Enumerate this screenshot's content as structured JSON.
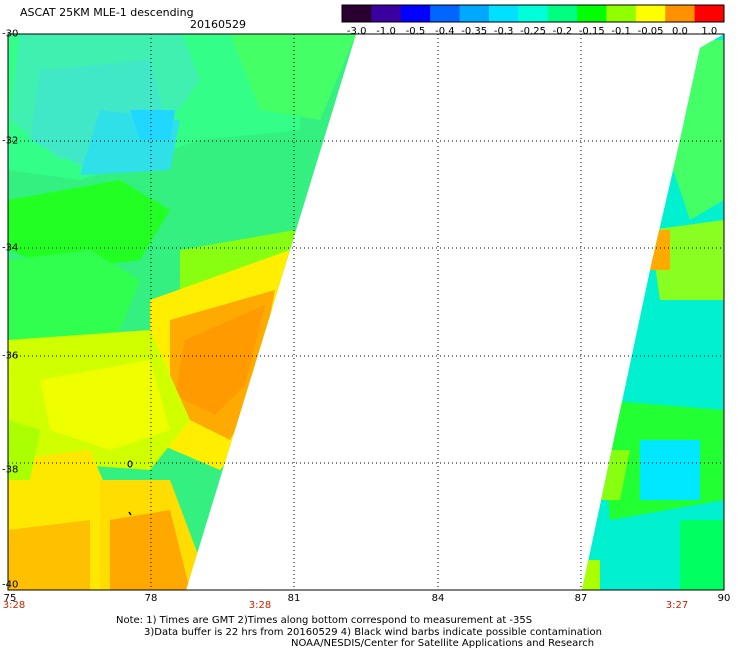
{
  "header": {
    "title": "ASCAT 25KM MLE-1 descending",
    "date": "20160529"
  },
  "colorbar": {
    "labels": [
      "-3.0",
      "-1.0",
      "-0.5",
      "-0.4",
      "-0.35",
      "-0.3",
      "-0.25",
      "-0.2",
      "-0.15",
      "-0.1",
      "-0.05",
      "0.0",
      "1.0"
    ],
    "colors": [
      "#2a0030",
      "#3a00a0",
      "#0000ff",
      "#0066ff",
      "#00a8ff",
      "#00e0ff",
      "#00ffd8",
      "#00ff80",
      "#00ff00",
      "#90ff00",
      "#ffff00",
      "#ff9000",
      "#ff0000"
    ]
  },
  "map": {
    "lat_labels": [
      "-30",
      "-32",
      "-34",
      "-36",
      "-38",
      "-40"
    ],
    "lon_labels": [
      "75",
      "78",
      "81",
      "84",
      "87",
      "90"
    ],
    "time_labels": [
      "3:28",
      "3:28",
      "3:27"
    ]
  },
  "notes": {
    "line1": "Note: 1) Times are GMT 2)Times along bottom correspond to measurement at -35S",
    "line2": "3)Data buffer is 22 hrs from 20160529 4) Black wind barbs indicate possible contamination",
    "line3": "NOAA/NESDIS/Center for Satellite Applications and Research"
  }
}
